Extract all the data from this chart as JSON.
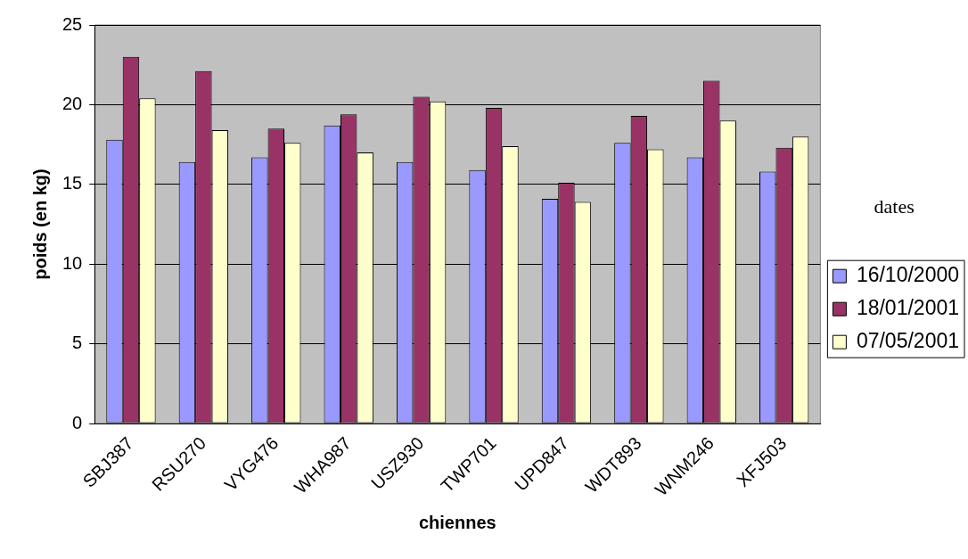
{
  "chart_data": {
    "type": "bar",
    "xlabel": "chiennes",
    "ylabel": "poids (en kg)",
    "legend_title": "dates",
    "legend": "right",
    "categories": [
      "SBJ387",
      "RSU270",
      "VYG476",
      "WHA987",
      "USZ930",
      "TWP701",
      "UPD847",
      "WDT893",
      "WNM246",
      "XFJ503"
    ],
    "series": [
      {
        "name": "16/10/2000",
        "color": "#9999ff",
        "values": [
          17.8,
          16.4,
          16.7,
          18.7,
          16.4,
          15.9,
          14.1,
          17.6,
          16.7,
          15.8
        ]
      },
      {
        "name": "18/01/2001",
        "color": "#993366",
        "values": [
          23.0,
          22.1,
          18.5,
          19.4,
          20.5,
          19.8,
          15.1,
          19.3,
          21.5,
          17.3
        ]
      },
      {
        "name": "07/05/2001",
        "color": "#ffffcc",
        "values": [
          20.4,
          18.4,
          17.6,
          17.0,
          20.2,
          17.4,
          13.9,
          17.2,
          19.0,
          18.0
        ]
      }
    ],
    "ylim": [
      0,
      25
    ],
    "yticks": [
      0,
      5,
      10,
      15,
      20,
      25
    ],
    "grid": "y"
  }
}
